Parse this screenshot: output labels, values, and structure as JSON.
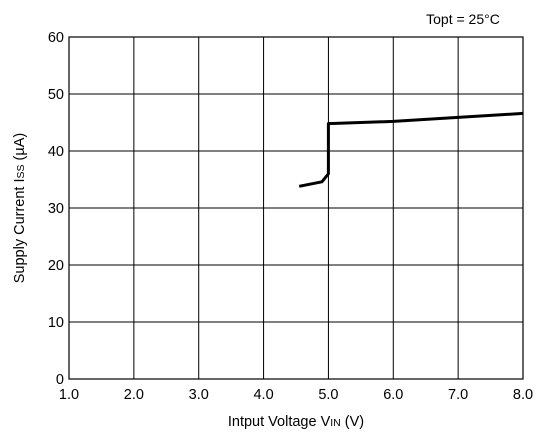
{
  "chart_data": {
    "type": "line",
    "annotation": "Topt = 25°C",
    "xlabel": {
      "main": "Intput Voltage V",
      "sub": "IN",
      "unit": " (V)"
    },
    "ylabel": {
      "main": "Supply Current  I",
      "sub": "SS",
      "unit": " (µA)"
    },
    "xlim": [
      1.0,
      8.0
    ],
    "ylim": [
      0,
      60
    ],
    "x_ticks": [
      1.0,
      2.0,
      3.0,
      4.0,
      5.0,
      6.0,
      7.0,
      8.0
    ],
    "x_tick_labels": [
      "1.0",
      "2.0",
      "3.0",
      "4.0",
      "5.0",
      "6.0",
      "7.0",
      "8.0"
    ],
    "y_ticks": [
      0,
      10,
      20,
      30,
      40,
      50,
      60
    ],
    "y_tick_labels": [
      "0",
      "10",
      "20",
      "30",
      "40",
      "50",
      "60"
    ],
    "grid": true,
    "series": [
      {
        "color": "#000000",
        "x": [
          4.55,
          4.9,
          5.0,
          5.0,
          6.0,
          7.0,
          8.0
        ],
        "y": [
          33.8,
          34.6,
          36.0,
          44.8,
          45.2,
          45.9,
          46.6
        ]
      }
    ]
  }
}
